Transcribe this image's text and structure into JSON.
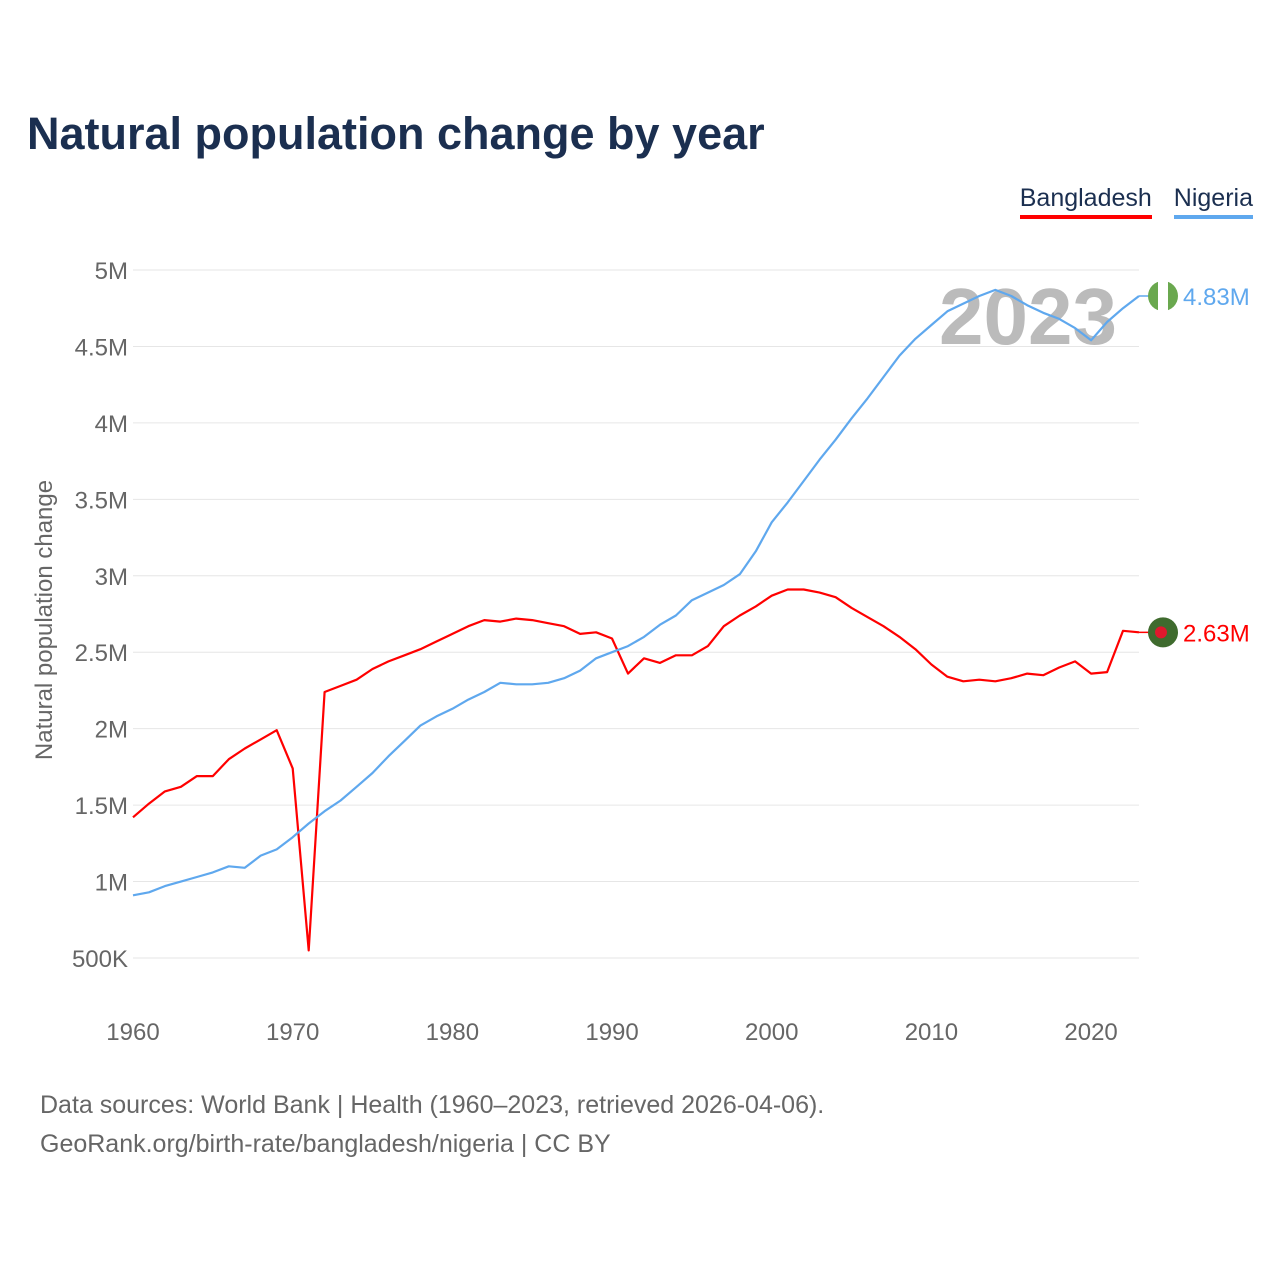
{
  "title": "Natural population change by year",
  "footer": {
    "line1": "Data sources: World Bank | Health (1960–2023, retrieved 2026-04-06).",
    "line2": "GeoRank.org/birth-rate/bangladesh/nigeria | CC BY"
  },
  "chart_data": {
    "type": "line",
    "title": "Natural population change by year",
    "xlabel": "",
    "ylabel": "Natural population change",
    "watermark_year": "2023",
    "xlim": [
      1960,
      2023
    ],
    "ylim": [
      0.5,
      5.0
    ],
    "y_unit": "millions",
    "x_ticks": [
      "1960",
      "1970",
      "1980",
      "1990",
      "2000",
      "2010",
      "2020"
    ],
    "y_ticks": [
      {
        "v": 0.5,
        "label": "500K"
      },
      {
        "v": 1,
        "label": "1M"
      },
      {
        "v": 1.5,
        "label": "1.5M"
      },
      {
        "v": 2,
        "label": "2M"
      },
      {
        "v": 2.5,
        "label": "2.5M"
      },
      {
        "v": 3,
        "label": "3M"
      },
      {
        "v": 3.5,
        "label": "3.5M"
      },
      {
        "v": 4,
        "label": "4M"
      },
      {
        "v": 4.5,
        "label": "4.5M"
      },
      {
        "v": 5,
        "label": "5M"
      }
    ],
    "grid": true,
    "legend_placement": "top-right",
    "x_start": 1960,
    "series": [
      {
        "name": "Bangladesh",
        "color": "#ff0000",
        "end_label": "2.63M",
        "flag": "bangladesh-flag",
        "values": [
          1.42,
          1.51,
          1.59,
          1.62,
          1.69,
          1.69,
          1.8,
          1.87,
          1.93,
          1.99,
          1.74,
          0.55,
          2.24,
          2.28,
          2.32,
          2.39,
          2.44,
          2.48,
          2.52,
          2.57,
          2.62,
          2.67,
          2.71,
          2.7,
          2.72,
          2.71,
          2.69,
          2.67,
          2.62,
          2.63,
          2.59,
          2.36,
          2.46,
          2.43,
          2.48,
          2.48,
          2.54,
          2.67,
          2.74,
          2.8,
          2.87,
          2.91,
          2.91,
          2.89,
          2.86,
          2.79,
          2.73,
          2.67,
          2.6,
          2.52,
          2.42,
          2.34,
          2.31,
          2.32,
          2.31,
          2.33,
          2.36,
          2.35,
          2.4,
          2.44,
          2.36,
          2.37,
          2.64,
          2.63
        ]
      },
      {
        "name": "Nigeria",
        "color": "#5fa8ee",
        "end_label": "4.83M",
        "flag": "nigeria-flag",
        "values": [
          0.91,
          0.93,
          0.97,
          1.0,
          1.03,
          1.06,
          1.1,
          1.09,
          1.17,
          1.21,
          1.29,
          1.38,
          1.46,
          1.53,
          1.62,
          1.71,
          1.82,
          1.92,
          2.02,
          2.08,
          2.13,
          2.19,
          2.24,
          2.3,
          2.29,
          2.29,
          2.3,
          2.33,
          2.38,
          2.46,
          2.5,
          2.54,
          2.6,
          2.68,
          2.74,
          2.84,
          2.89,
          2.94,
          3.01,
          3.16,
          3.35,
          3.48,
          3.62,
          3.76,
          3.89,
          4.03,
          4.16,
          4.3,
          4.44,
          4.55,
          4.64,
          4.73,
          4.78,
          4.83,
          4.87,
          4.83,
          4.77,
          4.72,
          4.68,
          4.62,
          4.54,
          4.66,
          4.75,
          4.83
        ]
      }
    ]
  }
}
